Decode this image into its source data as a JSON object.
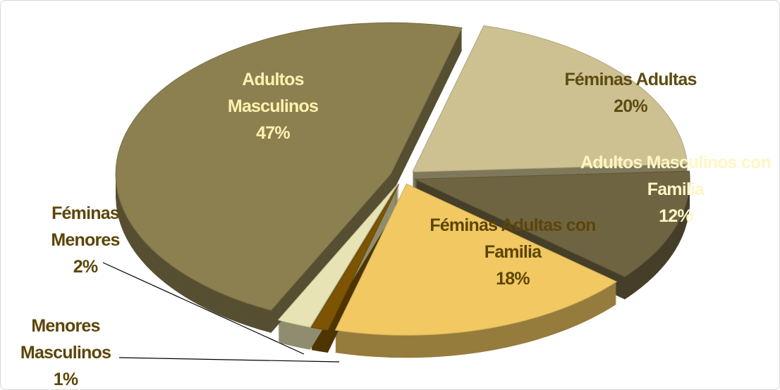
{
  "chart_data": {
    "type": "pie",
    "categories": [
      "Féminas Adultas",
      "Adultos Masculinos con Familia",
      "Féminas Adultas con Familia",
      "Menores Masculinos",
      "Féminas Menores",
      "Adultos Masculinos"
    ],
    "values": [
      20,
      12,
      18,
      1,
      2,
      47
    ],
    "value_labels": [
      "20%",
      "12%",
      "18%",
      "1%",
      "2%",
      "47%"
    ],
    "colors": [
      "#cdc192",
      "#6f6442",
      "#f1c862",
      "#7d5502",
      "#e7e3b4",
      "#8c8050"
    ]
  }
}
